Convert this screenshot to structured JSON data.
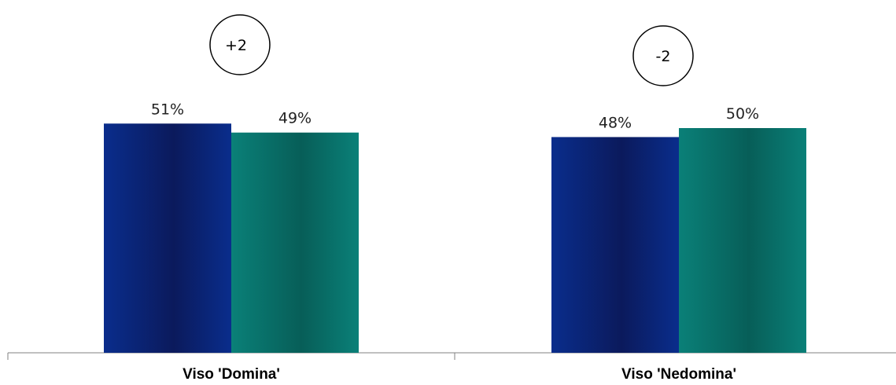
{
  "chart_data": {
    "type": "bar",
    "categories": [
      "Viso 'Domina'",
      "Viso 'Nedomina'"
    ],
    "series": [
      {
        "values": [
          51,
          48
        ],
        "labels": [
          "51%",
          "48%"
        ],
        "color": "#0a2d8c"
      },
      {
        "values": [
          49,
          50
        ],
        "labels": [
          "49%",
          "50%"
        ],
        "color": "#0a8078"
      }
    ],
    "annotations": [
      "+2",
      "-2"
    ],
    "ylim": [
      0,
      100
    ],
    "grid": false,
    "legend": "none"
  }
}
